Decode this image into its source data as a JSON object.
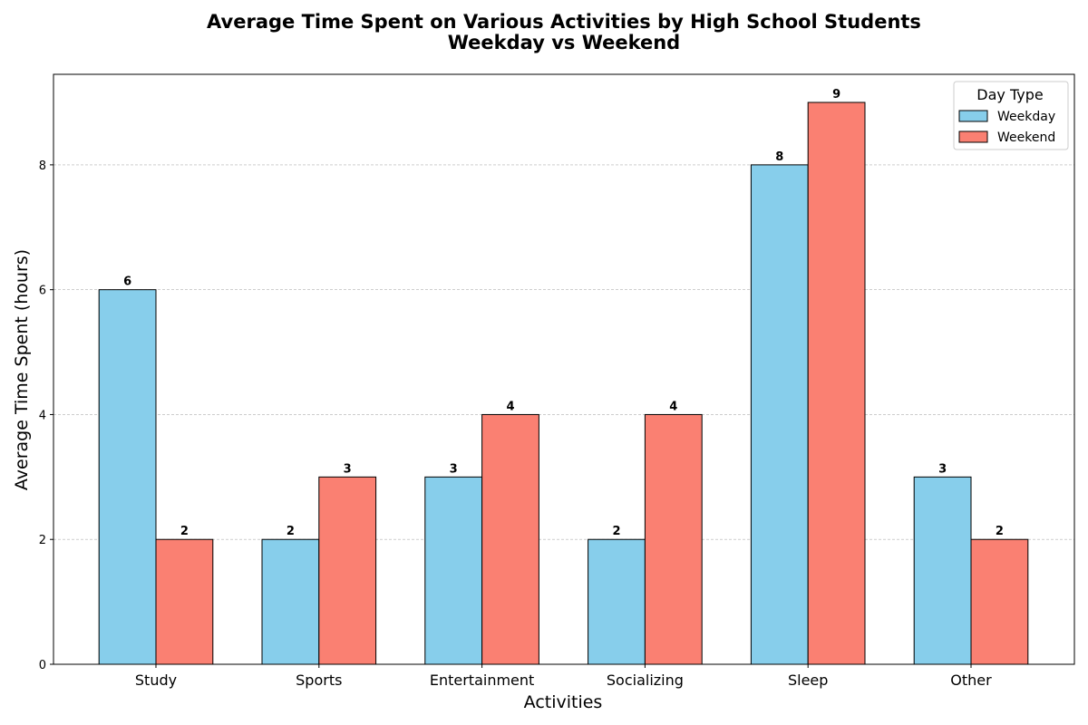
{
  "chart_data": {
    "type": "bar",
    "title": "Average Time Spent on Various Activities by High School Students",
    "subtitle": "Weekday vs Weekend",
    "xlabel": "Activities",
    "ylabel": "Average Time Spent (hours)",
    "categories": [
      "Study",
      "Sports",
      "Entertainment",
      "Socializing",
      "Sleep",
      "Other"
    ],
    "series": [
      {
        "name": "Weekday",
        "values": [
          6,
          2,
          3,
          2,
          8,
          3
        ],
        "color": "#87CEEB"
      },
      {
        "name": "Weekend",
        "values": [
          2,
          3,
          4,
          4,
          9,
          2
        ],
        "color": "#FA8072"
      }
    ],
    "ylim": [
      0,
      9.45
    ],
    "yticks": [
      0,
      2,
      4,
      6,
      8
    ],
    "grid": "y-dashed",
    "legend": {
      "title": "Day Type",
      "placement": "top-right"
    }
  }
}
